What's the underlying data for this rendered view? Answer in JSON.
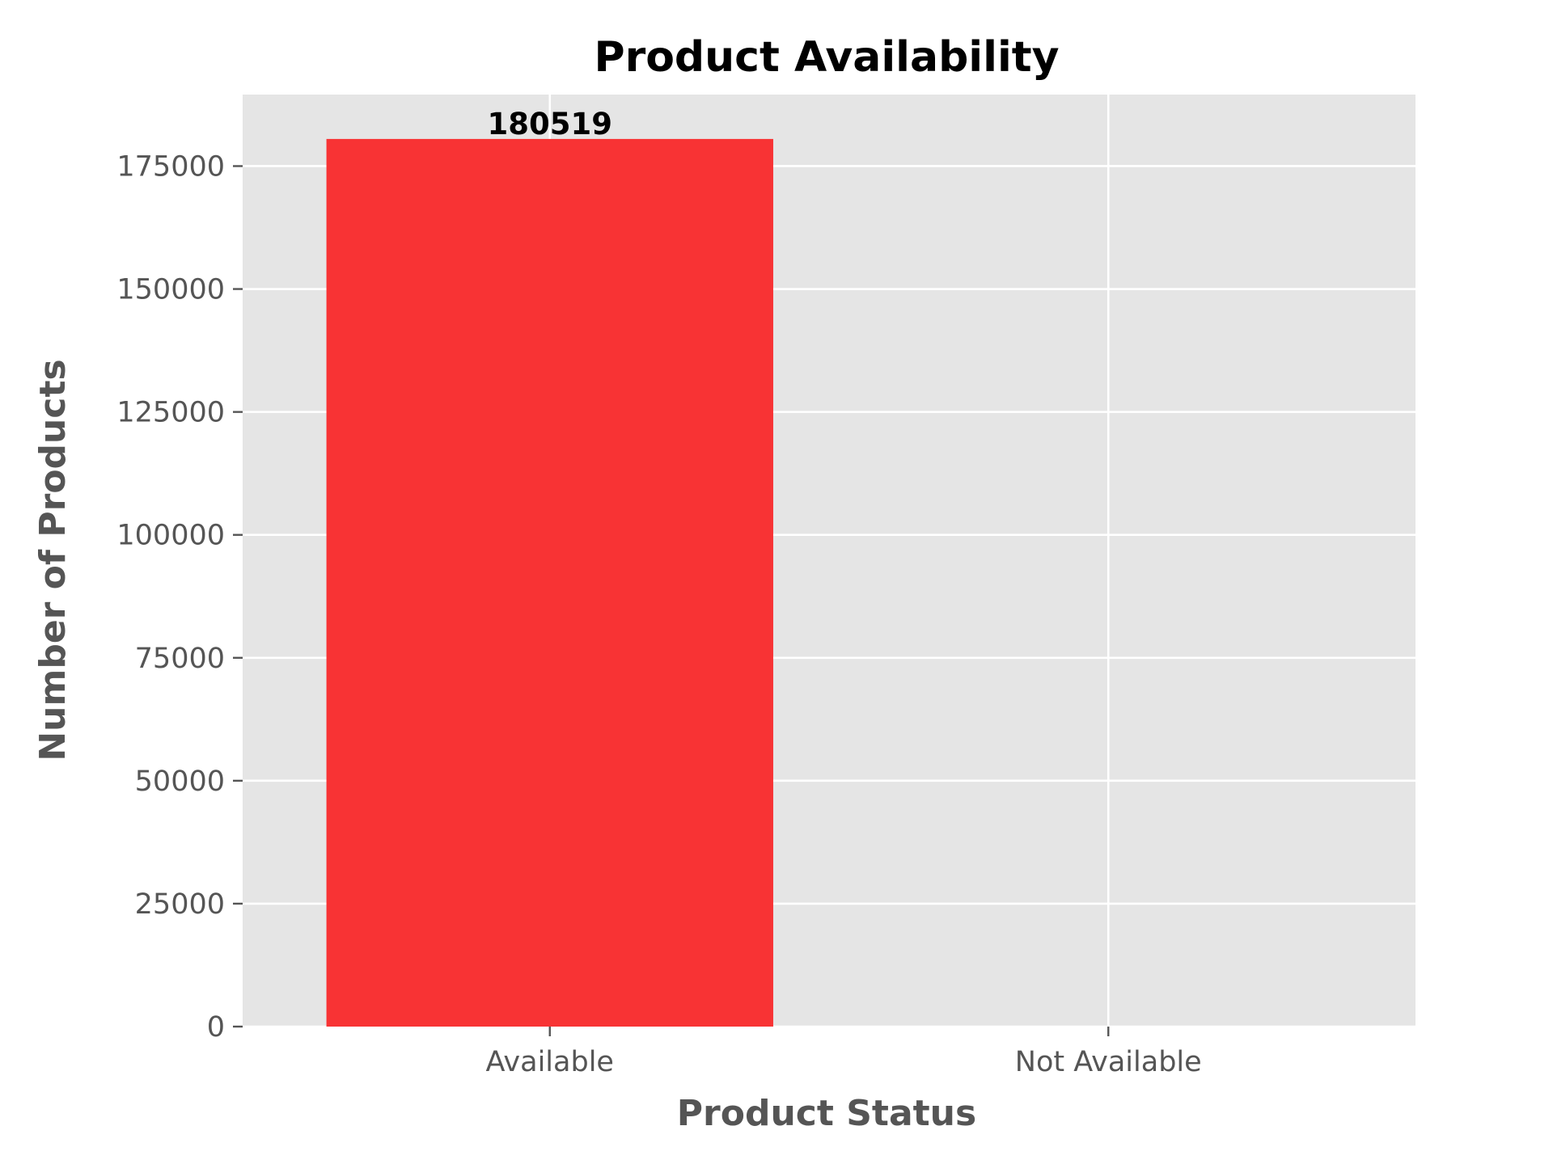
{
  "chart_data": {
    "type": "bar",
    "title": "Product Availability",
    "xlabel": "Product Status",
    "ylabel": "Number of Products",
    "categories": [
      "Available",
      "Not Available"
    ],
    "values": [
      180519,
      0
    ],
    "data_labels": [
      "180519",
      ""
    ],
    "ylim": [
      0,
      189545
    ],
    "yticks": [
      0,
      25000,
      50000,
      75000,
      100000,
      125000,
      150000,
      175000
    ],
    "ytick_labels": [
      "0",
      "25000",
      "50000",
      "75000",
      "100000",
      "125000",
      "150000",
      "175000"
    ],
    "grid": true,
    "legend": "none",
    "colors": {
      "bar": "#f82f30",
      "plot_background": "#e5e5e5",
      "grid": "#ffffff",
      "tick_text": "#555555",
      "title_text": "#000000"
    }
  }
}
